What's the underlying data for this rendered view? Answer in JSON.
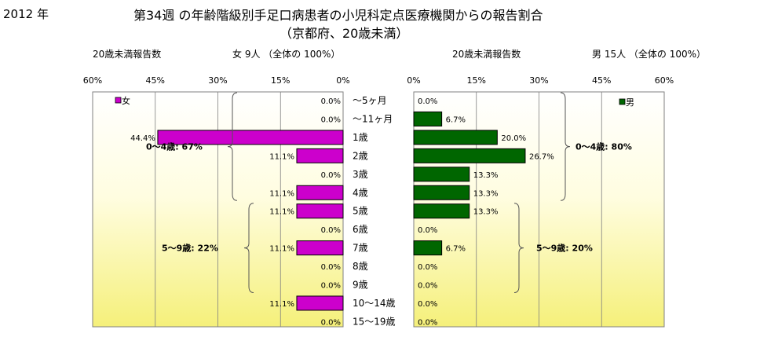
{
  "header": {
    "year": "2012 年",
    "title_line1": "第34週 の年齢階級別手足口病患者の小児科定点医療機関からの報告割合",
    "title_line2": "（京都府、20歳未満）"
  },
  "left_panel": {
    "count_label": "20歳未満報告数",
    "total_label": "女  9人 （全体の  100%）"
  },
  "right_panel": {
    "count_label": "20歳未満報告数",
    "total_label": "男  15人 （全体の  100%）"
  },
  "chart_data": [
    {
      "type": "bar",
      "orientation": "horizontal",
      "direction": "right-to-left",
      "series": [
        {
          "name": "女",
          "color": "#cc00cc",
          "values": [
            0.0,
            0.0,
            44.4,
            11.1,
            0.0,
            11.1,
            11.1,
            0.0,
            11.1,
            0.0,
            0.0,
            11.1,
            0.0
          ]
        }
      ],
      "value_labels": [
        "0.0%",
        "0.0%",
        "44.4%",
        "11.1%",
        "0.0%",
        "11.1%",
        "11.1%",
        "0.0%",
        "11.1%",
        "0.0%",
        "0.0%",
        "11.1%",
        "0.0%"
      ],
      "categories": [
        "～5ヶ月",
        "～11ヶ月",
        "1歳",
        "2歳",
        "3歳",
        "4歳",
        "5歳",
        "6歳",
        "7歳",
        "8歳",
        "9歳",
        "10～14歳",
        "15～19歳"
      ],
      "xlim": [
        0,
        60
      ],
      "ticks": [
        "60%",
        "45%",
        "30%",
        "15%",
        "0%"
      ],
      "legend": "top-left",
      "brackets": [
        "0～4歳: 67%",
        "5～9歳: 22%"
      ]
    },
    {
      "type": "bar",
      "orientation": "horizontal",
      "direction": "left-to-right",
      "series": [
        {
          "name": "男",
          "color": "#006600",
          "values": [
            0.0,
            6.7,
            20.0,
            26.7,
            13.3,
            13.3,
            13.3,
            0.0,
            6.7,
            0.0,
            0.0,
            0.0,
            0.0
          ]
        }
      ],
      "value_labels": [
        "0.0%",
        "6.7%",
        "20.0%",
        "26.7%",
        "13.3%",
        "13.3%",
        "13.3%",
        "0.0%",
        "6.7%",
        "0.0%",
        "0.0%",
        "0.0%",
        "0.0%"
      ],
      "categories": [
        "～5ヶ月",
        "～11ヶ月",
        "1歳",
        "2歳",
        "3歳",
        "4歳",
        "5歳",
        "6歳",
        "7歳",
        "8歳",
        "9歳",
        "10～14歳",
        "15～19歳"
      ],
      "xlim": [
        0,
        60
      ],
      "ticks": [
        "0%",
        "15%",
        "30%",
        "45%",
        "60%"
      ],
      "legend": "top-right",
      "brackets": [
        "0～4歳: 80%",
        "5～9歳: 20%"
      ]
    }
  ]
}
